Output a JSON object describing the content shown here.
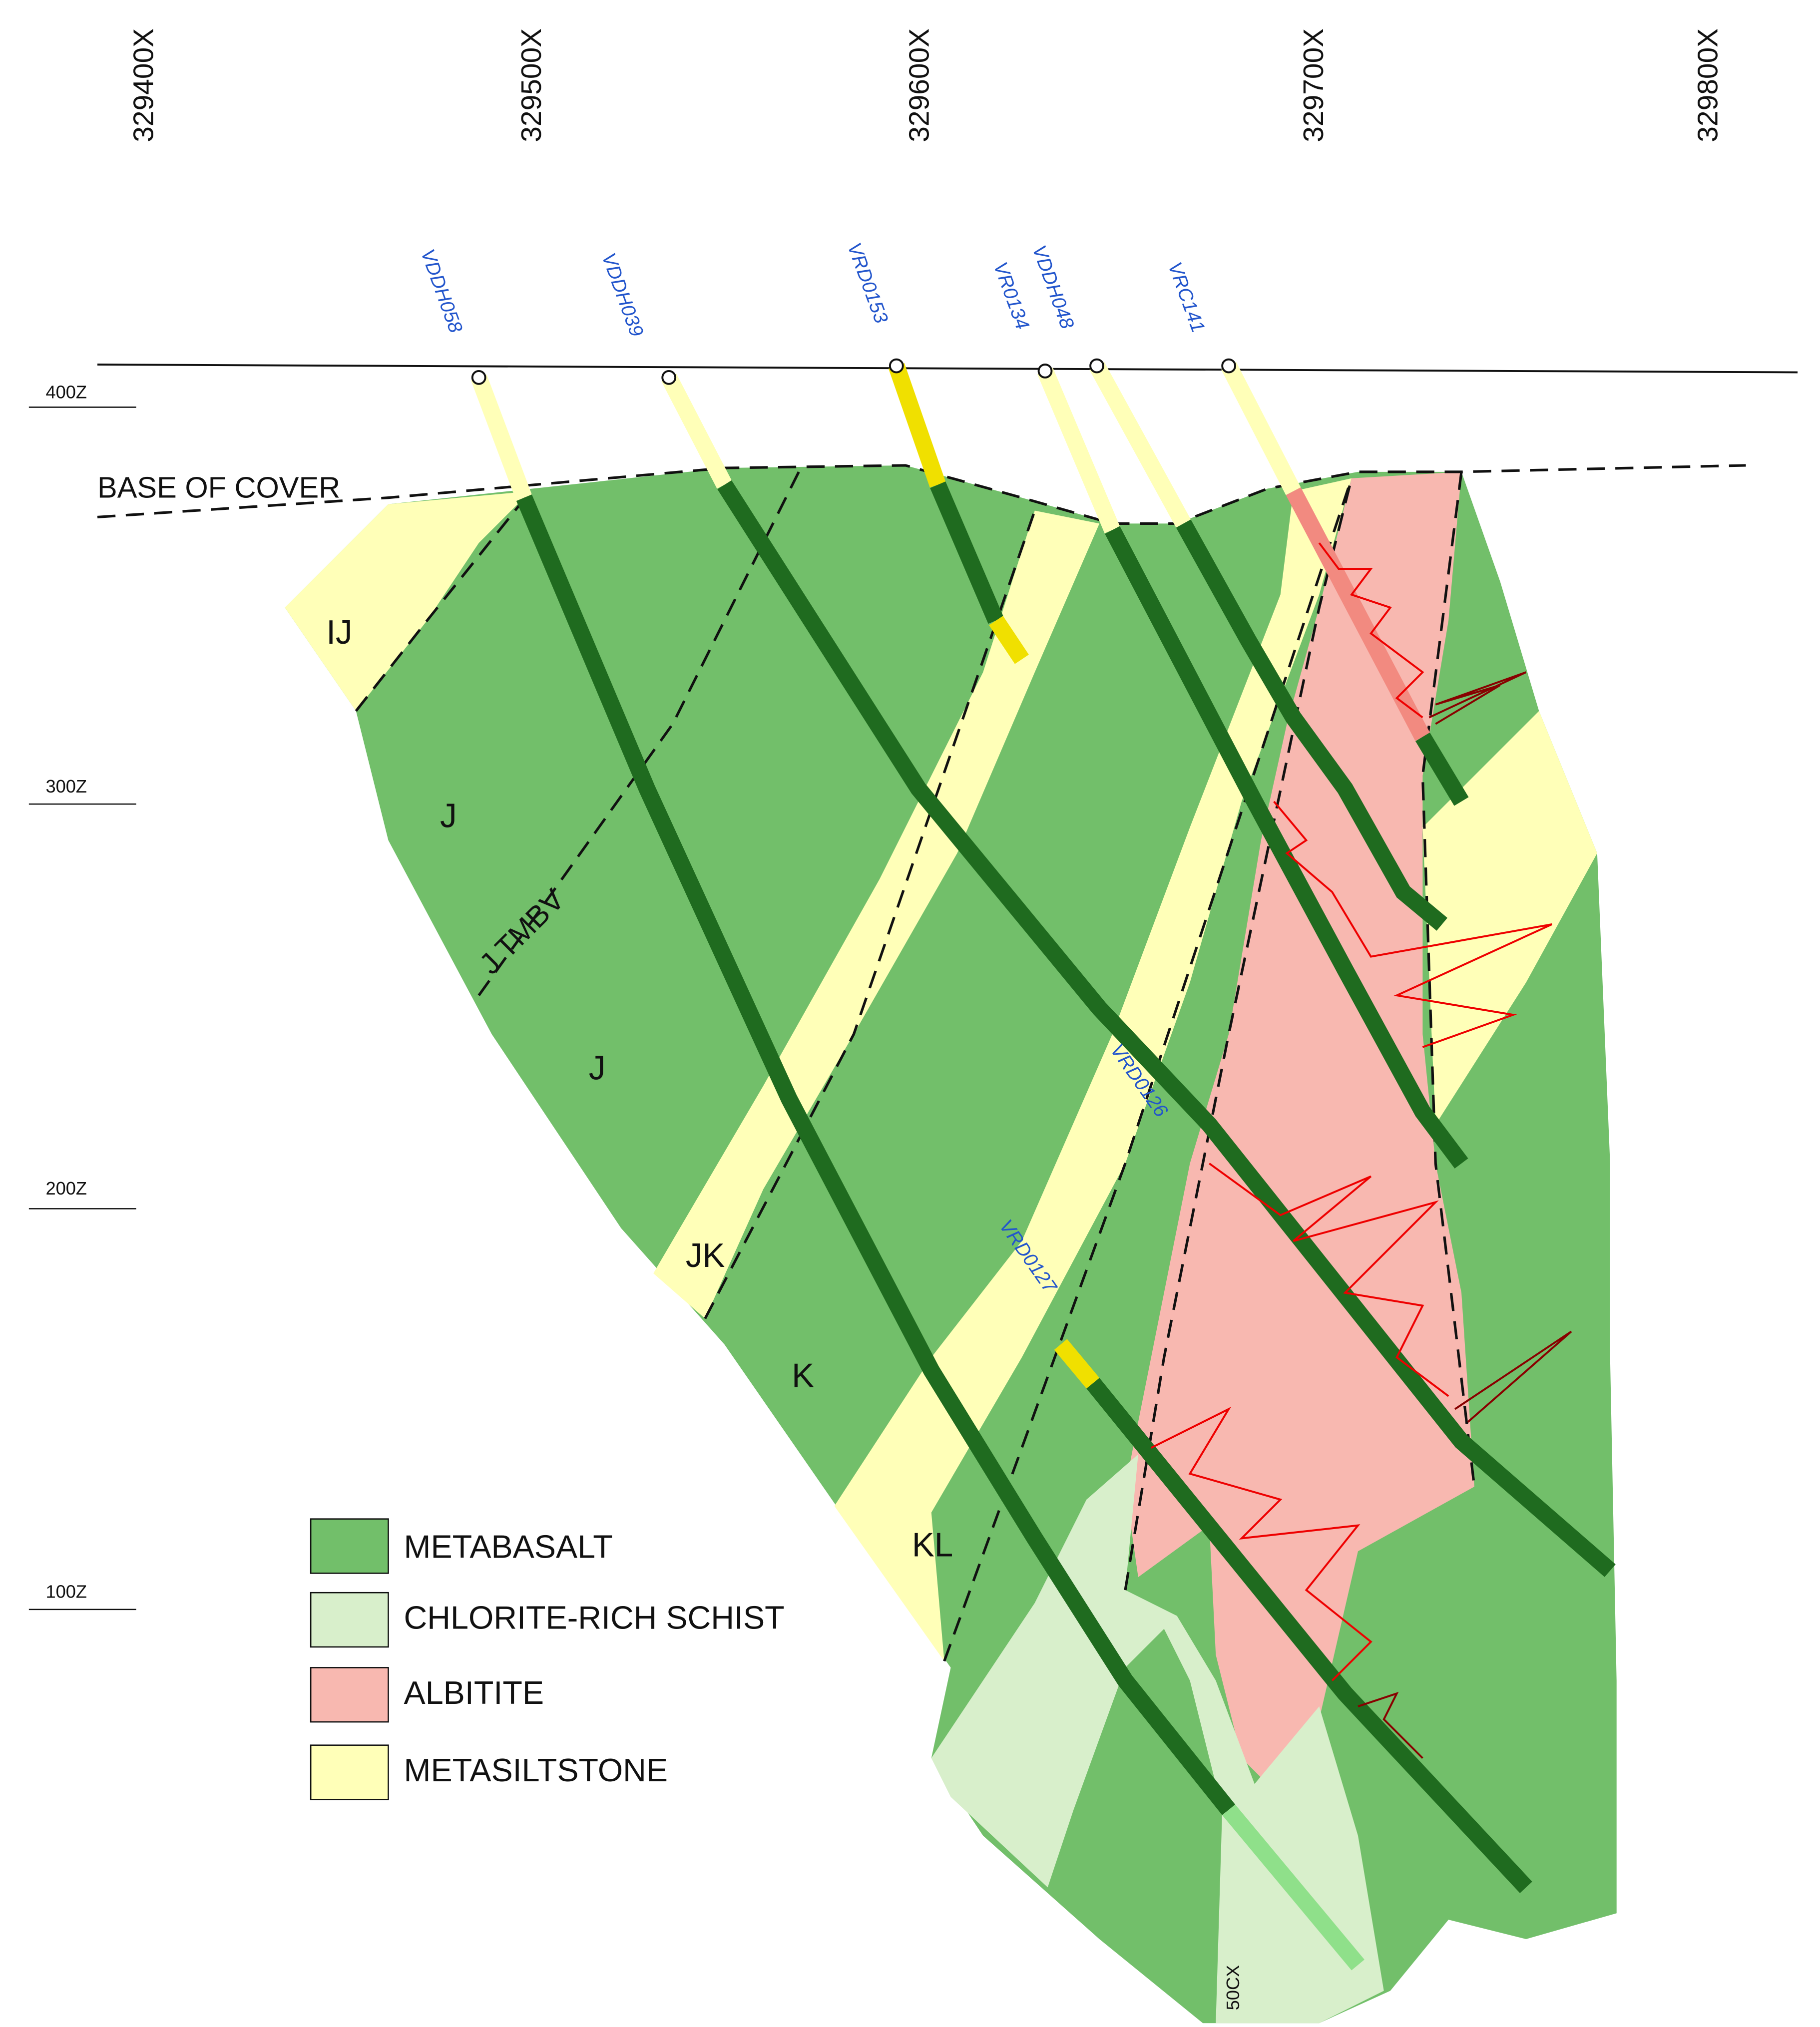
{
  "eastings": [
    "329400X",
    "329500X",
    "329600X",
    "329700X",
    "329800X"
  ],
  "elevations": [
    "400Z",
    "300Z",
    "200Z",
    "100Z"
  ],
  "drillholes": [
    "VDDH058",
    "VDDH039",
    "VRD0153",
    "VR0134",
    "VDDH048",
    "VRC141",
    "VRD0126",
    "VRD0127"
  ],
  "annotations": {
    "base_of_cover": "BASE OF COVER",
    "section_label": "50CX"
  },
  "units": [
    "IJ",
    "J",
    "J TMBV",
    "J",
    "JK",
    "K",
    "KL"
  ],
  "legend": [
    "METABASALT",
    "CHLORITE-RICH SCHIST",
    "ALBITITE",
    "METASILTSTONE"
  ]
}
